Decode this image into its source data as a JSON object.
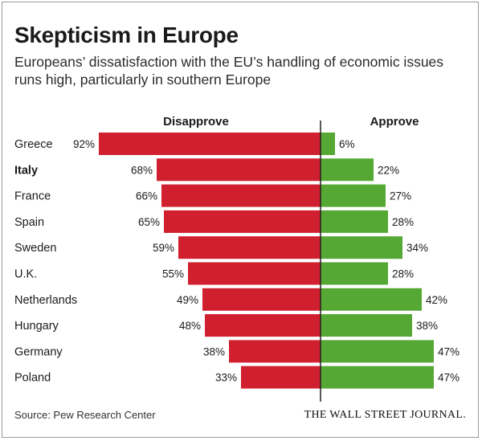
{
  "title": "Skepticism in Europe",
  "subtitle": "Europeans’ dissatisfaction with the EU’s handling of economic issues runs high, particularly in southern Europe",
  "source": "Source: Pew Research Center",
  "publisher": "THE WALL STREET JOURNAL.",
  "colors": {
    "disapprove": "#d01f2e",
    "approve": "#55a834",
    "axis": "#222222"
  },
  "chart_data": {
    "type": "bar",
    "orientation": "diverging-horizontal",
    "categories": [
      "Greece",
      "Italy",
      "France",
      "Spain",
      "Sweden",
      "U.K.",
      "Netherlands",
      "Hungary",
      "Germany",
      "Poland"
    ],
    "highlighted_category": "Italy",
    "series": [
      {
        "name": "Disapprove",
        "values": [
          92,
          68,
          66,
          65,
          59,
          55,
          49,
          48,
          38,
          33
        ],
        "labels": [
          "92%",
          "68%",
          "66%",
          "65%",
          "59%",
          "55%",
          "49%",
          "48%",
          "38%",
          "33%"
        ]
      },
      {
        "name": "Approve",
        "values": [
          6,
          22,
          27,
          28,
          34,
          28,
          42,
          38,
          47,
          47
        ],
        "labels": [
          "6%",
          "22%",
          "27%",
          "28%",
          "34%",
          "28%",
          "42%",
          "38%",
          "47%",
          "47%"
        ]
      }
    ],
    "unit": "%"
  }
}
